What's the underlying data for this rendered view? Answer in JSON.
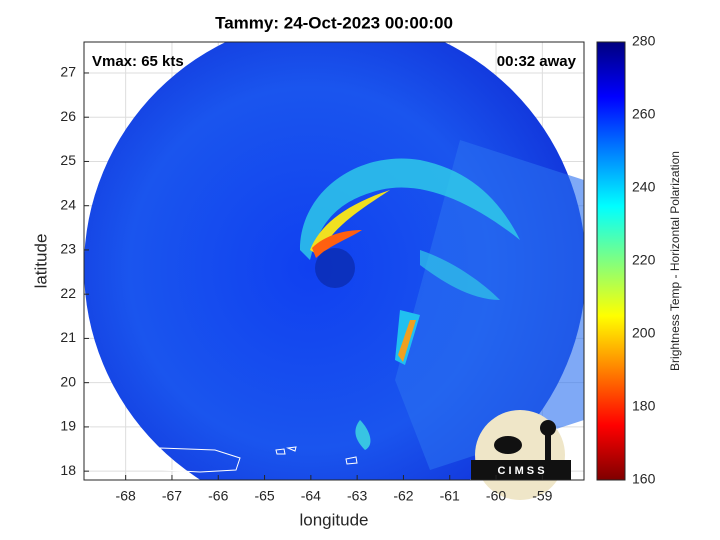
{
  "chart_data": {
    "type": "map",
    "title": "Tammy: 24-Oct-2023 00:00:00",
    "annotations": [
      "Vmax: 65 kts",
      "00:32 away"
    ],
    "xlabel": "longitude",
    "ylabel": "latitude",
    "xlim": [
      -68.9,
      -58.1
    ],
    "ylim": [
      17.8,
      27.7
    ],
    "xticks": [
      -68,
      -67,
      -66,
      -65,
      -64,
      -63,
      -62,
      -61,
      -60,
      -59
    ],
    "yticks": [
      18,
      19,
      20,
      21,
      22,
      23,
      24,
      25,
      26,
      27
    ],
    "grid": true,
    "logo_text": "C I M S S",
    "colorbar": {
      "label": "Brightness Temp - Horizontal Polarization",
      "lim": [
        160,
        280
      ],
      "ticks": [
        160,
        180,
        200,
        220,
        240,
        260,
        280
      ],
      "colormap": [
        "#7f0000",
        "#ff0000",
        "#ff8000",
        "#ffff00",
        "#80ff80",
        "#00ffff",
        "#0080ff",
        "#0000ff",
        "#00007f"
      ]
    }
  }
}
